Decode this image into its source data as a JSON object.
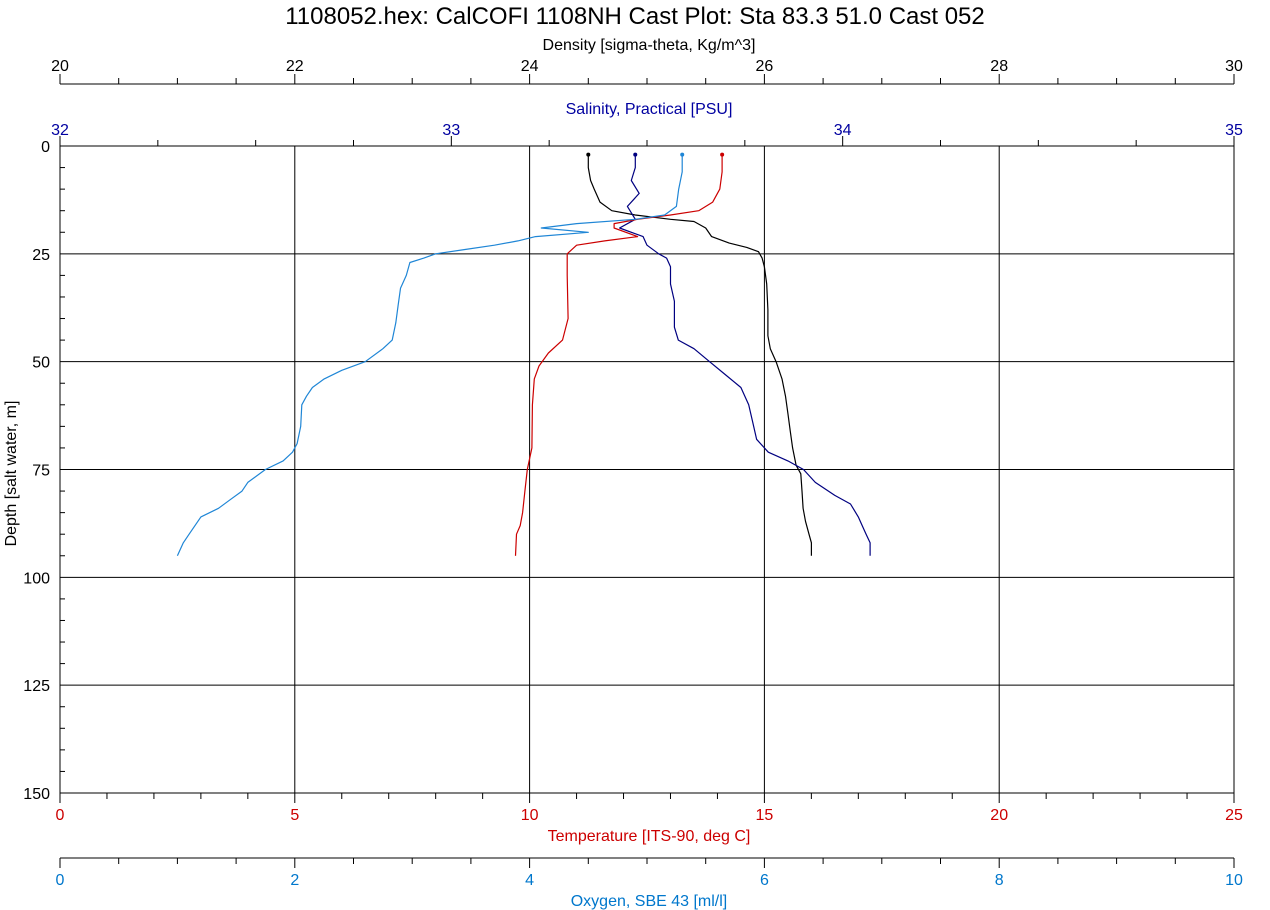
{
  "chart_data": {
    "type": "line",
    "title": "1108052.hex: CalCOFI 1108NH Cast Plot: Sta 83.3  51.0  Cast 052",
    "y_axis": {
      "label": "Depth [salt water, m]",
      "range": [
        0,
        150
      ],
      "inverted": true,
      "ticks": [
        0,
        25,
        50,
        75,
        100,
        125,
        150
      ],
      "tick_labels": [
        "0",
        "25",
        "50",
        "75",
        "100",
        "125",
        "150"
      ],
      "minor_step": 5
    },
    "x_axes": [
      {
        "id": "density",
        "position": "top-1",
        "label": "Density [sigma-theta, Kg/m^3]",
        "color": "#000000",
        "range": [
          20,
          30
        ],
        "ticks": [
          20,
          22,
          24,
          26,
          28,
          30
        ],
        "tick_labels": [
          "20",
          "22",
          "24",
          "26",
          "28",
          "30"
        ],
        "minor_step": 0.5
      },
      {
        "id": "salinity",
        "position": "top-2",
        "label": "Salinity, Practical [PSU]",
        "color": "#0000a0",
        "range": [
          32,
          35
        ],
        "ticks": [
          32,
          33,
          34,
          35
        ],
        "tick_labels": [
          "32",
          "33",
          "34",
          "35"
        ],
        "minor_step": 0.25
      },
      {
        "id": "temperature",
        "position": "bottom-1",
        "label": "Temperature [ITS-90, deg C]",
        "color": "#cc0000",
        "range": [
          0,
          25
        ],
        "ticks": [
          0,
          5,
          10,
          15,
          20,
          25
        ],
        "tick_labels": [
          "0",
          "5",
          "10",
          "15",
          "20",
          "25"
        ],
        "minor_step": 1
      },
      {
        "id": "oxygen",
        "position": "bottom-2",
        "label": "Oxygen, SBE 43 [ml/l]",
        "color": "#0077cc",
        "range": [
          0,
          10
        ],
        "ticks": [
          0,
          2,
          4,
          6,
          8,
          10
        ],
        "tick_labels": [
          "0",
          "2",
          "4",
          "6",
          "8",
          "10"
        ],
        "minor_step": 0.5
      }
    ],
    "grid": true,
    "series": [
      {
        "axis": "density",
        "color": "#000000",
        "points": [
          [
            24.5,
            2
          ],
          [
            24.5,
            5
          ],
          [
            24.52,
            8
          ],
          [
            24.55,
            10
          ],
          [
            24.6,
            13
          ],
          [
            24.7,
            15
          ],
          [
            24.9,
            16
          ],
          [
            25.2,
            17
          ],
          [
            25.4,
            17.5
          ],
          [
            25.5,
            19
          ],
          [
            25.55,
            21
          ],
          [
            25.7,
            22.5
          ],
          [
            25.85,
            23.5
          ],
          [
            25.95,
            24.5
          ],
          [
            25.98,
            26
          ],
          [
            26.0,
            28
          ],
          [
            26.02,
            32
          ],
          [
            26.03,
            38
          ],
          [
            26.03,
            44
          ],
          [
            26.05,
            47
          ],
          [
            26.1,
            50
          ],
          [
            26.15,
            54
          ],
          [
            26.18,
            58
          ],
          [
            26.2,
            62
          ],
          [
            26.22,
            66
          ],
          [
            26.24,
            70
          ],
          [
            26.27,
            74
          ],
          [
            26.31,
            76
          ],
          [
            26.32,
            80
          ],
          [
            26.33,
            84
          ],
          [
            26.35,
            87
          ],
          [
            26.38,
            90
          ],
          [
            26.4,
            92
          ],
          [
            26.4,
            95
          ]
        ]
      },
      {
        "axis": "salinity",
        "color": "#000080",
        "points": [
          [
            33.47,
            2
          ],
          [
            33.47,
            5
          ],
          [
            33.46,
            8
          ],
          [
            33.48,
            11
          ],
          [
            33.45,
            14
          ],
          [
            33.47,
            17
          ],
          [
            33.43,
            19
          ],
          [
            33.49,
            21
          ],
          [
            33.5,
            23
          ],
          [
            33.53,
            25
          ],
          [
            33.55,
            26
          ],
          [
            33.56,
            28
          ],
          [
            33.56,
            32
          ],
          [
            33.57,
            36
          ],
          [
            33.57,
            42
          ],
          [
            33.58,
            45
          ],
          [
            33.62,
            47
          ],
          [
            33.66,
            50
          ],
          [
            33.7,
            53
          ],
          [
            33.74,
            56
          ],
          [
            33.76,
            60
          ],
          [
            33.77,
            64
          ],
          [
            33.78,
            68
          ],
          [
            33.81,
            71
          ],
          [
            33.86,
            73
          ],
          [
            33.9,
            75
          ],
          [
            33.93,
            78
          ],
          [
            33.98,
            81
          ],
          [
            34.02,
            83
          ],
          [
            34.04,
            86
          ],
          [
            34.05,
            88
          ],
          [
            34.06,
            90
          ],
          [
            34.07,
            92
          ],
          [
            34.07,
            95
          ]
        ]
      },
      {
        "axis": "temperature",
        "color": "#cc0000",
        "points": [
          [
            14.1,
            2
          ],
          [
            14.1,
            6
          ],
          [
            14.05,
            10
          ],
          [
            13.9,
            13
          ],
          [
            13.6,
            15
          ],
          [
            13.0,
            16
          ],
          [
            12.3,
            17
          ],
          [
            11.8,
            18
          ],
          [
            11.8,
            19
          ],
          [
            12.3,
            21
          ],
          [
            11.6,
            22
          ],
          [
            11.0,
            23
          ],
          [
            10.8,
            25
          ],
          [
            10.8,
            30
          ],
          [
            10.82,
            40
          ],
          [
            10.7,
            45
          ],
          [
            10.4,
            48
          ],
          [
            10.2,
            51
          ],
          [
            10.1,
            54
          ],
          [
            10.06,
            60
          ],
          [
            10.05,
            70
          ],
          [
            9.95,
            75
          ],
          [
            9.9,
            80
          ],
          [
            9.85,
            85
          ],
          [
            9.8,
            88
          ],
          [
            9.72,
            90
          ],
          [
            9.7,
            95
          ]
        ]
      },
      {
        "axis": "oxygen",
        "color": "#1f86d6",
        "points": [
          [
            5.3,
            2
          ],
          [
            5.3,
            6
          ],
          [
            5.27,
            10
          ],
          [
            5.25,
            14
          ],
          [
            5.15,
            16
          ],
          [
            4.9,
            17
          ],
          [
            4.4,
            18
          ],
          [
            4.1,
            19
          ],
          [
            4.5,
            20
          ],
          [
            4.05,
            21
          ],
          [
            3.9,
            22
          ],
          [
            3.7,
            23
          ],
          [
            3.45,
            24
          ],
          [
            3.2,
            25
          ],
          [
            3.1,
            26
          ],
          [
            2.98,
            27
          ],
          [
            2.95,
            30
          ],
          [
            2.9,
            33
          ],
          [
            2.88,
            37
          ],
          [
            2.86,
            41
          ],
          [
            2.83,
            45
          ],
          [
            2.75,
            47
          ],
          [
            2.6,
            50
          ],
          [
            2.4,
            52
          ],
          [
            2.25,
            54
          ],
          [
            2.15,
            56
          ],
          [
            2.1,
            58
          ],
          [
            2.06,
            60
          ],
          [
            2.05,
            65
          ],
          [
            2.02,
            69
          ],
          [
            1.98,
            71
          ],
          [
            1.9,
            73
          ],
          [
            1.75,
            75
          ],
          [
            1.6,
            78
          ],
          [
            1.55,
            80
          ],
          [
            1.45,
            82
          ],
          [
            1.35,
            84
          ],
          [
            1.2,
            86
          ],
          [
            1.15,
            88
          ],
          [
            1.1,
            90
          ],
          [
            1.05,
            92
          ],
          [
            1.0,
            95
          ]
        ]
      }
    ]
  }
}
